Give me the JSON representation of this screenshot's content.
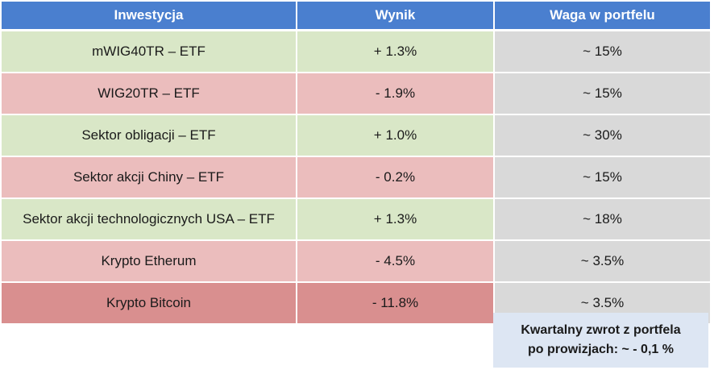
{
  "headers": [
    "Inwestycja",
    "Wynik",
    "Waga w portfelu"
  ],
  "rows": [
    {
      "name": "mWIG40TR – ETF",
      "result": "+ 1.3%",
      "weight": "~ 15%"
    },
    {
      "name": "WIG20TR – ETF",
      "result": "- 1.9%",
      "weight": "~ 15%"
    },
    {
      "name": "Sektor obligacji  – ETF",
      "result": "+ 1.0%",
      "weight": "~ 30%"
    },
    {
      "name": "Sektor akcji Chiny – ETF",
      "result": "- 0.2%",
      "weight": "~ 15%"
    },
    {
      "name": "Sektor akcji technologicznych USA – ETF",
      "result": "+ 1.3%",
      "weight": "~ 18%"
    },
    {
      "name": "Krypto Etherum",
      "result": "- 4.5%",
      "weight": "~ 3.5%"
    },
    {
      "name": "Krypto Bitcoin",
      "result": "- 11.8%",
      "weight": "~ 3.5%"
    }
  ],
  "summary": {
    "line1": "Kwartalny zwrot z portfela",
    "line2": "po prowizjach: ~ - 0,1 %"
  },
  "colors": {
    "header": "#4a7fcf",
    "positive": "#d9e7c7",
    "negative": "#ebbdbd",
    "strong_negative": "#d98f8f",
    "weight": "#d9d9d9",
    "summary": "#dde6f3"
  }
}
